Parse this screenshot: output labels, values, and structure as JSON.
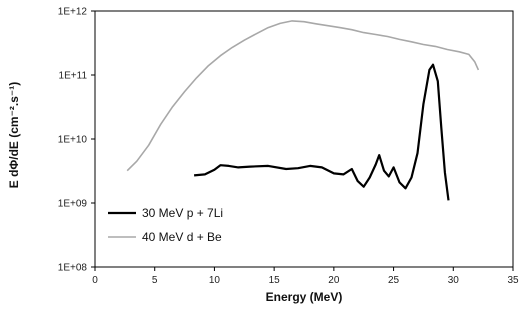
{
  "chart_data": {
    "type": "line",
    "xlabel": "Energy (MeV)",
    "ylabel": "E dΦ/dE (cm⁻².s⁻¹)",
    "xlim": [
      0,
      35
    ],
    "ylim": [
      100000000.0,
      1000000000000.0
    ],
    "yscale": "log",
    "grid": false,
    "legend_position": "bottom-left",
    "x_ticks": [
      0,
      5,
      10,
      15,
      20,
      25,
      30,
      35
    ],
    "x_tick_labels": [
      "0",
      "5",
      "10",
      "15",
      "20",
      "25",
      "30",
      "35"
    ],
    "y_ticks": [
      100000000.0,
      1000000000.0,
      10000000000.0,
      100000000000.0,
      1000000000000.0
    ],
    "y_tick_labels": [
      "1E+08",
      "1E+09",
      "1E+10",
      "1E+11",
      "1E+12"
    ],
    "series": [
      {
        "name": "30 MeV p + 7Li",
        "color": "#000000",
        "points": [
          [
            8.3,
            2700000000.0
          ],
          [
            9.2,
            2800000000.0
          ],
          [
            10.0,
            3300000000.0
          ],
          [
            10.5,
            3900000000.0
          ],
          [
            11.2,
            3800000000.0
          ],
          [
            12.0,
            3600000000.0
          ],
          [
            13.0,
            3700000000.0
          ],
          [
            14.5,
            3800000000.0
          ],
          [
            16.0,
            3400000000.0
          ],
          [
            17.0,
            3500000000.0
          ],
          [
            18.0,
            3800000000.0
          ],
          [
            19.0,
            3600000000.0
          ],
          [
            20.0,
            2900000000.0
          ],
          [
            20.8,
            2800000000.0
          ],
          [
            21.5,
            3400000000.0
          ],
          [
            22.0,
            2200000000.0
          ],
          [
            22.5,
            1800000000.0
          ],
          [
            23.0,
            2500000000.0
          ],
          [
            23.5,
            4000000000.0
          ],
          [
            23.8,
            5600000000.0
          ],
          [
            24.2,
            3200000000.0
          ],
          [
            24.6,
            2600000000.0
          ],
          [
            25.0,
            3600000000.0
          ],
          [
            25.5,
            2100000000.0
          ],
          [
            26.0,
            1700000000.0
          ],
          [
            26.5,
            2500000000.0
          ],
          [
            27.0,
            6000000000.0
          ],
          [
            27.5,
            35000000000.0
          ],
          [
            28.0,
            120000000000.0
          ],
          [
            28.3,
            145000000000.0
          ],
          [
            28.7,
            80000000000.0
          ],
          [
            29.0,
            15000000000.0
          ],
          [
            29.3,
            3000000000.0
          ],
          [
            29.6,
            1100000000.0
          ]
        ]
      },
      {
        "name": "40 MeV d + Be",
        "color": "#a8a8a8",
        "points": [
          [
            2.7,
            3200000000.0
          ],
          [
            3.5,
            4500000000.0
          ],
          [
            4.5,
            8000000000.0
          ],
          [
            5.5,
            17000000000.0
          ],
          [
            6.5,
            32000000000.0
          ],
          [
            7.5,
            55000000000.0
          ],
          [
            8.5,
            90000000000.0
          ],
          [
            9.5,
            140000000000.0
          ],
          [
            10.5,
            200000000000.0
          ],
          [
            11.5,
            270000000000.0
          ],
          [
            12.5,
            350000000000.0
          ],
          [
            13.5,
            440000000000.0
          ],
          [
            14.5,
            550000000000.0
          ],
          [
            15.5,
            640000000000.0
          ],
          [
            16.5,
            700000000000.0
          ],
          [
            17.5,
            680000000000.0
          ],
          [
            18.5,
            630000000000.0
          ],
          [
            19.5,
            590000000000.0
          ],
          [
            20.5,
            550000000000.0
          ],
          [
            21.5,
            510000000000.0
          ],
          [
            22.5,
            460000000000.0
          ],
          [
            23.5,
            430000000000.0
          ],
          [
            24.5,
            400000000000.0
          ],
          [
            25.5,
            360000000000.0
          ],
          [
            26.5,
            330000000000.0
          ],
          [
            27.5,
            300000000000.0
          ],
          [
            28.5,
            280000000000.0
          ],
          [
            29.5,
            250000000000.0
          ],
          [
            30.5,
            230000000000.0
          ],
          [
            31.3,
            210000000000.0
          ],
          [
            31.8,
            160000000000.0
          ],
          [
            32.1,
            120000000000.0
          ]
        ]
      }
    ]
  }
}
